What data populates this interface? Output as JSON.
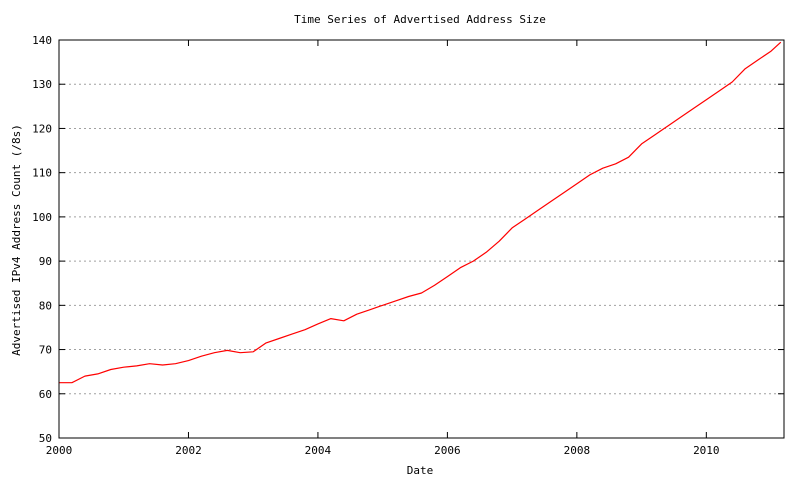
{
  "chart_data": {
    "type": "line",
    "title": "Time Series of Advertised Address Size",
    "xlabel": "Date",
    "ylabel": "Advertised IPv4 Address Count (/8s)",
    "xlim": [
      2000,
      2011.2
    ],
    "ylim": [
      50,
      140
    ],
    "xticks": [
      "2000",
      "2002",
      "2004",
      "2006",
      "2008",
      "2010"
    ],
    "yticks": [
      "50",
      "60",
      "70",
      "80",
      "90",
      "100",
      "110",
      "120",
      "130",
      "140"
    ],
    "grid": "horizontal-dotted",
    "line_color": "#ff0000",
    "series": [
      {
        "x": [
          2000.0,
          2000.2,
          2000.4,
          2000.6,
          2000.8,
          2001.0,
          2001.2,
          2001.4,
          2001.6,
          2001.8,
          2002.0,
          2002.2,
          2002.4,
          2002.6,
          2002.8,
          2003.0,
          2003.2,
          2003.4,
          2003.6,
          2003.8,
          2004.0,
          2004.2,
          2004.4,
          2004.6,
          2004.8,
          2005.0,
          2005.2,
          2005.4,
          2005.6,
          2005.8,
          2006.0,
          2006.2,
          2006.4,
          2006.6,
          2006.8,
          2007.0,
          2007.2,
          2007.4,
          2007.6,
          2007.8,
          2008.0,
          2008.2,
          2008.4,
          2008.6,
          2008.8,
          2009.0,
          2009.2,
          2009.4,
          2009.6,
          2009.8,
          2010.0,
          2010.2,
          2010.4,
          2010.6,
          2010.8,
          2011.0,
          2011.15
        ],
        "y": [
          62.5,
          62.5,
          64.0,
          64.5,
          65.5,
          66.0,
          66.3,
          66.8,
          66.5,
          66.8,
          67.5,
          68.5,
          69.3,
          69.8,
          69.3,
          69.5,
          71.5,
          72.5,
          73.5,
          74.5,
          75.8,
          77.0,
          76.5,
          78.0,
          79.0,
          80.0,
          81.0,
          82.0,
          82.8,
          84.5,
          86.5,
          88.5,
          90.0,
          92.0,
          94.5,
          97.5,
          99.5,
          101.5,
          103.5,
          105.5,
          107.5,
          109.5,
          111.0,
          112.0,
          113.5,
          116.5,
          118.5,
          120.5,
          122.5,
          124.5,
          126.5,
          128.5,
          130.5,
          133.5,
          135.5,
          137.5,
          139.5
        ]
      }
    ]
  }
}
